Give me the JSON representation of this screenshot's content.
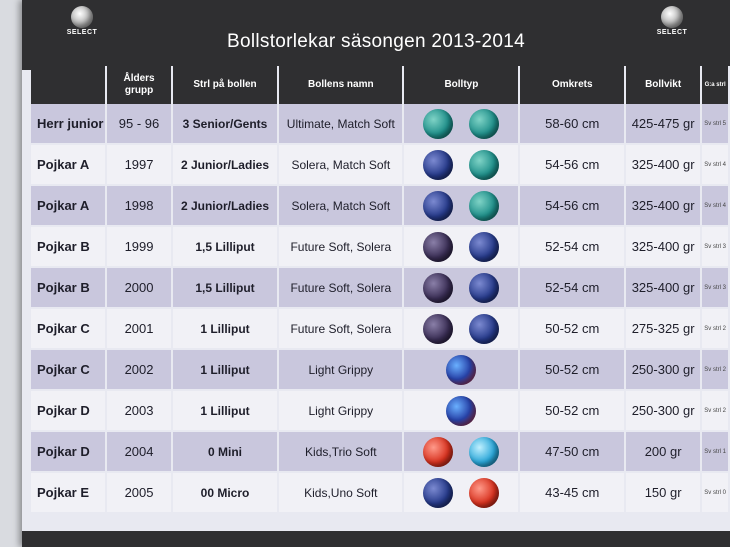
{
  "header": {
    "title": "Bollstorlekar säsongen 2013-2014",
    "logo_text": "SELECT"
  },
  "columns": [
    "",
    "Ålders grupp",
    "Strl på bollen",
    "Bollens namn",
    "Bolltyp",
    "Omkrets",
    "Bollvikt",
    "G:a strl"
  ],
  "rows": [
    {
      "group": "Herr junior",
      "age": "95 - 96",
      "size": "3  Senior/Gents",
      "name": "Ultimate, Match Soft",
      "balls": [
        "teal",
        "teal"
      ],
      "circ": "58-60 cm",
      "weight": "425-475 gr",
      "old": "Sv strl 5"
    },
    {
      "group": "Pojkar A",
      "age": "1997",
      "size": "2  Junior/Ladies",
      "name": "Solera, Match Soft",
      "balls": [
        "navy",
        "teal"
      ],
      "circ": "54-56 cm",
      "weight": "325-400 gr",
      "old": "Sv strl 4"
    },
    {
      "group": "Pojkar A",
      "age": "1998",
      "size": "2  Junior/Ladies",
      "name": "Solera, Match Soft",
      "balls": [
        "navy",
        "teal"
      ],
      "circ": "54-56 cm",
      "weight": "325-400 gr",
      "old": "Sv strl 4"
    },
    {
      "group": "Pojkar B",
      "age": "1999",
      "size": "1,5  Lilliput",
      "name": "Future Soft, Solera",
      "balls": [
        "dark",
        "navy"
      ],
      "circ": "52-54 cm",
      "weight": "325-400 gr",
      "old": "Sv strl 3"
    },
    {
      "group": "Pojkar B",
      "age": "2000",
      "size": "1,5  Lilliput",
      "name": "Future Soft, Solera",
      "balls": [
        "dark",
        "navy"
      ],
      "circ": "52-54 cm",
      "weight": "325-400 gr",
      "old": "Sv strl 3"
    },
    {
      "group": "Pojkar C",
      "age": "2001",
      "size": "1  Lilliput",
      "name": "Future Soft, Solera",
      "balls": [
        "dark",
        "navy"
      ],
      "circ": "50-52 cm",
      "weight": "275-325 gr",
      "old": "Sv strl 2"
    },
    {
      "group": "Pojkar C",
      "age": "2002",
      "size": "1  Lilliput",
      "name": "Light Grippy",
      "balls": [
        "mix"
      ],
      "circ": "50-52 cm",
      "weight": "250-300 gr",
      "old": "Sv strl 2"
    },
    {
      "group": "Pojkar D",
      "age": "2003",
      "size": "1  Lilliput",
      "name": "Light Grippy",
      "balls": [
        "mix"
      ],
      "circ": "50-52 cm",
      "weight": "250-300 gr",
      "old": "Sv strl 2"
    },
    {
      "group": "Pojkar D",
      "age": "2004",
      "size": "0  Mini",
      "name": "Kids,Trio Soft",
      "balls": [
        "red",
        "cyan"
      ],
      "circ": "47-50 cm",
      "weight": "200 gr",
      "old": "Sv strl 1"
    },
    {
      "group": "Pojkar E",
      "age": "2005",
      "size": "00  Micro",
      "name": "Kids,Uno Soft",
      "balls": [
        "navy",
        "red"
      ],
      "circ": "43-45 cm",
      "weight": "150 gr",
      "old": "Sv strl 0"
    }
  ]
}
